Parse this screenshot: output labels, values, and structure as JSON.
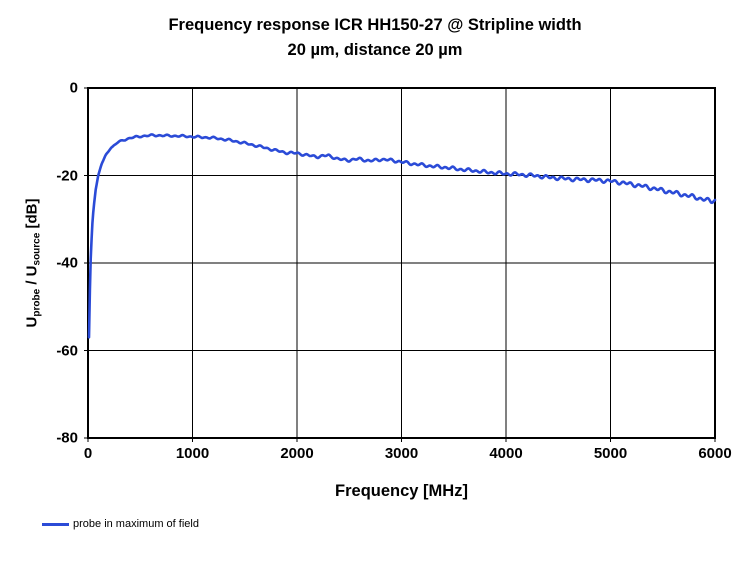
{
  "title": {
    "line1": "Frequency response ICR HH150-27 @ Stripline width",
    "line2": "20 µm, distance 20 µm"
  },
  "axes": {
    "x": {
      "label": "Frequency [MHz]",
      "min": 0,
      "max": 6000,
      "ticks": [
        0,
        1000,
        2000,
        3000,
        4000,
        5000,
        6000
      ]
    },
    "y": {
      "label_parts": {
        "u1": "U",
        "sub1": "probe",
        "sep": " / ",
        "u2": "U",
        "sub2": "source",
        "unit": " [dB]"
      },
      "min": -80,
      "max": 0,
      "ticks": [
        0,
        -20,
        -40,
        -60,
        -80
      ]
    }
  },
  "legend": {
    "label": "probe in maximum of field"
  },
  "chart_data": {
    "type": "line",
    "title": "Frequency response ICR HH150-27 @ Stripline width 20 µm, distance 20 µm",
    "xlabel": "Frequency [MHz]",
    "ylabel": "Uprobe / Usource [dB]",
    "xlim": [
      0,
      6000
    ],
    "ylim": [
      -80,
      0
    ],
    "grid": true,
    "grid_color": "#000000",
    "legend_position": "bottom-left",
    "noise": {
      "amplitude_db": 0.55,
      "start_mhz": 260
    },
    "series": [
      {
        "name": "probe in maximum of field",
        "color": "#2B4BD7",
        "points": [
          [
            10,
            -57
          ],
          [
            14,
            -51
          ],
          [
            20,
            -44
          ],
          [
            28,
            -37.5
          ],
          [
            40,
            -31.5
          ],
          [
            55,
            -27
          ],
          [
            75,
            -23
          ],
          [
            100,
            -19.8
          ],
          [
            130,
            -17.4
          ],
          [
            170,
            -15.3
          ],
          [
            220,
            -13.7
          ],
          [
            280,
            -12.5
          ],
          [
            350,
            -11.8
          ],
          [
            430,
            -11.3
          ],
          [
            520,
            -11.0
          ],
          [
            620,
            -10.8
          ],
          [
            750,
            -10.9
          ],
          [
            900,
            -11.0
          ],
          [
            1050,
            -11.2
          ],
          [
            1200,
            -11.4
          ],
          [
            1350,
            -11.9
          ],
          [
            1500,
            -12.6
          ],
          [
            1650,
            -13.4
          ],
          [
            1800,
            -14.3
          ],
          [
            1900,
            -14.8
          ],
          [
            2000,
            -14.9
          ],
          [
            2100,
            -15.4
          ],
          [
            2200,
            -15.7
          ],
          [
            2300,
            -15.4
          ],
          [
            2400,
            -16.3
          ],
          [
            2500,
            -16.5
          ],
          [
            2600,
            -16.2
          ],
          [
            2700,
            -16.7
          ],
          [
            2800,
            -16.3
          ],
          [
            2900,
            -16.5
          ],
          [
            3000,
            -16.9
          ],
          [
            3100,
            -17.3
          ],
          [
            3200,
            -17.6
          ],
          [
            3300,
            -17.9
          ],
          [
            3400,
            -18.1
          ],
          [
            3500,
            -18.4
          ],
          [
            3600,
            -18.7
          ],
          [
            3700,
            -18.9
          ],
          [
            3800,
            -19.2
          ],
          [
            3900,
            -19.4
          ],
          [
            4000,
            -19.6
          ],
          [
            4100,
            -19.7
          ],
          [
            4200,
            -19.9
          ],
          [
            4300,
            -20.1
          ],
          [
            4400,
            -20.4
          ],
          [
            4500,
            -20.6
          ],
          [
            4600,
            -20.8
          ],
          [
            4700,
            -20.9
          ],
          [
            4800,
            -21.0
          ],
          [
            4900,
            -21.1
          ],
          [
            5000,
            -21.3
          ],
          [
            5100,
            -21.6
          ],
          [
            5200,
            -22.0
          ],
          [
            5300,
            -22.4
          ],
          [
            5400,
            -22.9
          ],
          [
            5500,
            -23.4
          ],
          [
            5600,
            -23.9
          ],
          [
            5700,
            -24.4
          ],
          [
            5800,
            -24.9
          ],
          [
            5900,
            -25.5
          ],
          [
            5960,
            -25.9
          ],
          [
            6000,
            -25.6
          ]
        ]
      }
    ]
  }
}
